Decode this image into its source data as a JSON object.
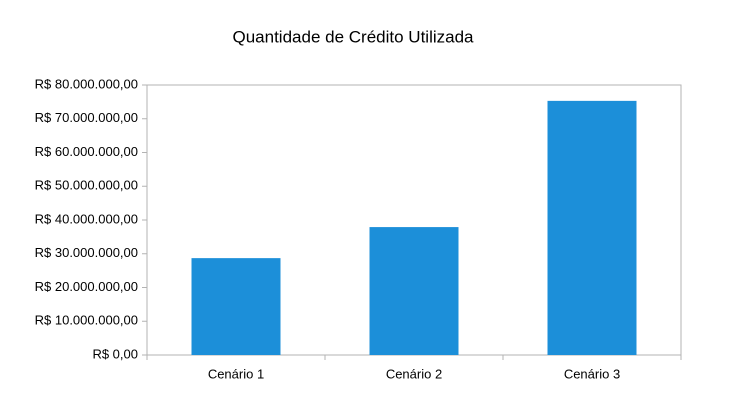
{
  "chart_data": {
    "type": "bar",
    "title": "Quantidade de Crédito Utilizada",
    "categories": [
      "Cenário 1",
      "Cenário 2",
      "Cenário 3"
    ],
    "values": [
      28700000,
      37900000,
      75300000
    ],
    "color": "#1c8fd9",
    "ylim": [
      0,
      80000000
    ],
    "yticks": [
      {
        "value": 0,
        "label": "R$ 0,00"
      },
      {
        "value": 10000000,
        "label": "R$ 10.000.000,00"
      },
      {
        "value": 20000000,
        "label": "R$ 20.000.000,00"
      },
      {
        "value": 30000000,
        "label": "R$ 30.000.000,00"
      },
      {
        "value": 40000000,
        "label": "R$ 40.000.000,00"
      },
      {
        "value": 50000000,
        "label": "R$ 50.000.000,00"
      },
      {
        "value": 60000000,
        "label": "R$ 60.000.000,00"
      },
      {
        "value": 70000000,
        "label": "R$ 70.000.000,00"
      },
      {
        "value": 80000000,
        "label": "R$ 80.000.000,00"
      }
    ],
    "grid": false
  }
}
